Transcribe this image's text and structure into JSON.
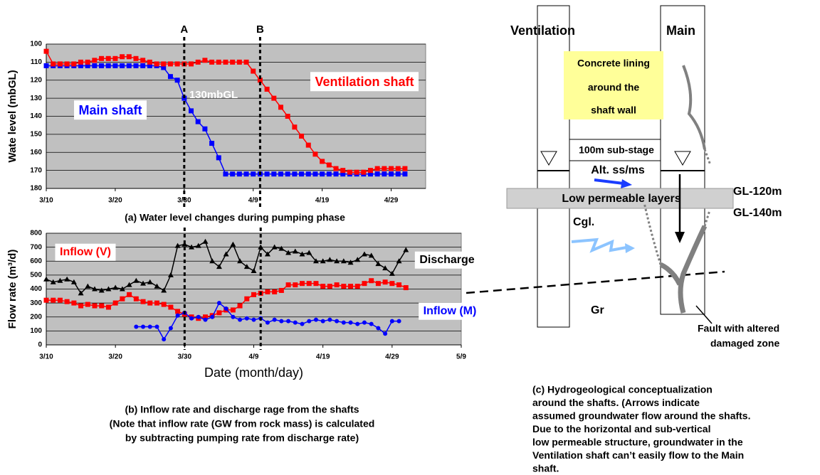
{
  "chart_data": [
    {
      "type": "line",
      "caption": "(a) Water level changes during pumping phase",
      "ylabel": "Wate level (mbGL)",
      "annotation": "130mbGL",
      "x": [
        "3/10",
        "3/11",
        "3/12",
        "3/13",
        "3/14",
        "3/15",
        "3/16",
        "3/17",
        "3/18",
        "3/19",
        "3/20",
        "3/21",
        "3/22",
        "3/23",
        "3/24",
        "3/25",
        "3/26",
        "3/27",
        "3/28",
        "3/29",
        "3/30",
        "3/31",
        "4/1",
        "4/2",
        "4/3",
        "4/4",
        "4/5",
        "4/6",
        "4/7",
        "4/8",
        "4/9",
        "4/10",
        "4/11",
        "4/12",
        "4/13",
        "4/14",
        "4/15",
        "4/16",
        "4/17",
        "4/18",
        "4/19",
        "4/20",
        "4/21",
        "4/22",
        "4/23",
        "4/24",
        "4/25",
        "4/26",
        "4/27",
        "4/28",
        "4/29",
        "4/30",
        "5/1"
      ],
      "xlim": [
        "3/10",
        "5/4"
      ],
      "xticks": [
        "3/10",
        "3/20",
        "3/30",
        "4/9",
        "4/19",
        "4/29"
      ],
      "ylim": [
        180,
        100
      ],
      "yticks": [
        100,
        110,
        120,
        130,
        140,
        150,
        160,
        170,
        180
      ],
      "grid": true,
      "markers": [
        {
          "label": "A",
          "x": "3/30"
        },
        {
          "label": "B",
          "x": "4/10"
        }
      ],
      "series": [
        {
          "name": "Main shaft",
          "color": "#0000ff",
          "marker": "square",
          "values": [
            112,
            112,
            112,
            112,
            112,
            112,
            112,
            112,
            112,
            112,
            112,
            112,
            112,
            112,
            112,
            112,
            112,
            113,
            118,
            120,
            130,
            137,
            143,
            147,
            155,
            163,
            172,
            172,
            172,
            172,
            172,
            172,
            172,
            172,
            172,
            172,
            172,
            172,
            172,
            172,
            172,
            172,
            172,
            172,
            172,
            172,
            172,
            172,
            172,
            172,
            172,
            172,
            172
          ]
        },
        {
          "name": "Ventilation shaft",
          "color": "#ff0000",
          "marker": "square",
          "values": [
            104,
            111,
            111,
            111,
            111,
            110,
            110,
            109,
            108,
            108,
            108,
            107,
            107,
            108,
            109,
            110,
            111,
            111,
            111,
            111,
            111,
            111,
            110,
            109,
            110,
            110,
            110,
            110,
            110,
            110,
            115,
            120,
            125,
            130,
            135,
            140,
            146,
            151,
            156,
            161,
            165,
            167,
            169,
            170,
            171,
            171,
            171,
            170,
            169,
            169,
            169,
            169,
            169
          ]
        }
      ]
    },
    {
      "type": "line",
      "caption": [
        "(b) Inflow rate and discharge rage from the shafts",
        "(Note that inflow rate (GW from rock mass) is calculated",
        "by subtracting  pumping rate from discharge rate)"
      ],
      "xlabel": "Date (month/day)",
      "ylabel": "Flow rate (m³/d)",
      "x": [
        "3/10",
        "3/11",
        "3/12",
        "3/13",
        "3/14",
        "3/15",
        "3/16",
        "3/17",
        "3/18",
        "3/19",
        "3/20",
        "3/21",
        "3/22",
        "3/23",
        "3/24",
        "3/25",
        "3/26",
        "3/27",
        "3/28",
        "3/29",
        "3/30",
        "3/31",
        "4/1",
        "4/2",
        "4/3",
        "4/4",
        "4/5",
        "4/6",
        "4/7",
        "4/8",
        "4/9",
        "4/10",
        "4/11",
        "4/12",
        "4/13",
        "4/14",
        "4/15",
        "4/16",
        "4/17",
        "4/18",
        "4/19",
        "4/20",
        "4/21",
        "4/22",
        "4/23",
        "4/24",
        "4/25",
        "4/26",
        "4/27",
        "4/28",
        "4/29",
        "4/30",
        "5/1"
      ],
      "xlim": [
        "3/10",
        "5/9"
      ],
      "xticks": [
        "3/10",
        "3/20",
        "3/30",
        "4/9",
        "4/19",
        "4/29",
        "5/9"
      ],
      "ylim": [
        0,
        800
      ],
      "yticks": [
        0,
        100,
        200,
        300,
        400,
        500,
        600,
        700,
        800
      ],
      "grid": true,
      "markers": [
        {
          "x": "3/30"
        },
        {
          "x": "4/10"
        }
      ],
      "series": [
        {
          "name": "Discharge",
          "color": "#000000",
          "marker": "triangle",
          "values": [
            470,
            450,
            460,
            470,
            450,
            370,
            420,
            400,
            390,
            400,
            410,
            400,
            430,
            460,
            440,
            450,
            420,
            390,
            500,
            710,
            720,
            700,
            710,
            740,
            600,
            560,
            650,
            720,
            600,
            560,
            530,
            700,
            650,
            700,
            690,
            660,
            670,
            650,
            660,
            600,
            600,
            610,
            600,
            600,
            590,
            610,
            650,
            640,
            580,
            550,
            510,
            600,
            680
          ]
        },
        {
          "name": "Inflow (V)",
          "color": "#ff0000",
          "marker": "square",
          "values": [
            320,
            320,
            320,
            310,
            300,
            280,
            290,
            280,
            280,
            270,
            300,
            330,
            360,
            330,
            310,
            300,
            300,
            290,
            270,
            240,
            220,
            200,
            190,
            200,
            210,
            230,
            250,
            250,
            280,
            330,
            360,
            370,
            380,
            380,
            390,
            430,
            430,
            440,
            440,
            440,
            420,
            420,
            430,
            420,
            420,
            420,
            440,
            460,
            440,
            450,
            440,
            430,
            410
          ]
        },
        {
          "name": "Inflow (M)",
          "color": "#0000ff",
          "marker": "circle",
          "values": [
            null,
            null,
            null,
            null,
            null,
            null,
            null,
            null,
            null,
            null,
            null,
            null,
            null,
            130,
            130,
            130,
            130,
            40,
            120,
            210,
            230,
            190,
            200,
            180,
            200,
            300,
            260,
            200,
            180,
            190,
            180,
            190,
            160,
            180,
            170,
            170,
            160,
            150,
            170,
            180,
            170,
            180,
            170,
            160,
            160,
            150,
            160,
            150,
            120,
            80,
            170,
            170,
            null
          ]
        }
      ]
    }
  ],
  "diagram": {
    "ventilation": "Ventilation",
    "main": "Main",
    "lining": [
      "Concrete lining",
      "around the",
      "shaft wall"
    ],
    "substage": "100m sub-stage",
    "alt": "Alt. ss/ms",
    "layers": "Low permeable layers",
    "gl120": "GL-120m",
    "gl140": "GL-140m",
    "cgl": "Cgl.",
    "gr": "Gr",
    "fault": [
      "Fault with altered",
      "damaged zone"
    ],
    "caption": [
      "(c) Hydrogeological conceptualization",
      "around the shafts. (Arrows indicate",
      "assumed groundwater flow around the shafts.",
      "Due to the horizontal and sub-vertical",
      "low permeable structure, groundwater in the",
      "Ventilation shaft can’t easily flow to the Main",
      "shaft."
    ]
  }
}
